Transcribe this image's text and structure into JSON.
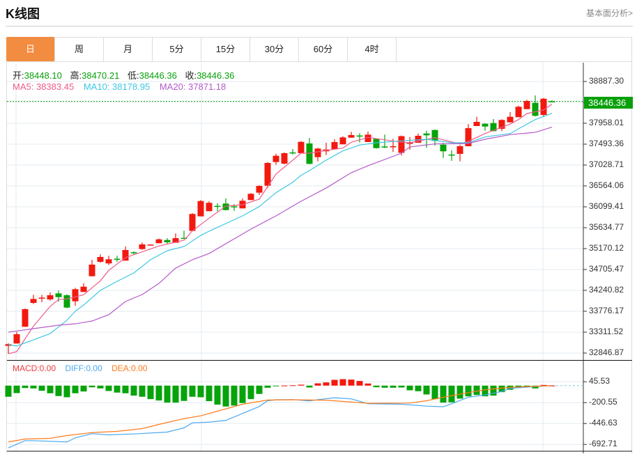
{
  "header": {
    "title": "K线图",
    "more_link": "基本面分析>"
  },
  "tabs": [
    {
      "label": "日",
      "active": true
    },
    {
      "label": "周"
    },
    {
      "label": "月"
    },
    {
      "label": "5分"
    },
    {
      "label": "15分"
    },
    {
      "label": "30分"
    },
    {
      "label": "60分"
    },
    {
      "label": "4时"
    }
  ],
  "info": {
    "open_label": "开:",
    "open": "38448.10",
    "high_label": "高:",
    "high": "38470.21",
    "low_label": "低:",
    "low": "38446.36",
    "close_label": "收:",
    "close": "38446.36"
  },
  "ma_legend": {
    "ma5": "MA5: 38383.45",
    "ma10": "MA10: 38178.95",
    "ma20": "MA20: 37871.18"
  },
  "macd_legend": {
    "macd": "MACD:0.00",
    "diff": "DIFF:0.00",
    "dea": "DEA:0.00"
  },
  "colors": {
    "up": "#f2190f",
    "down": "#06a30b",
    "ma5": "#ee5b8a",
    "ma10": "#3cc8e2",
    "ma20": "#b55ac9",
    "diff": "#4aa8f0",
    "dea": "#ff7a1a",
    "active_tab": "#f28c40"
  },
  "chart_data": [
    {
      "type": "candlestick",
      "title": "K线图",
      "ylim": [
        32692,
        39274
      ],
      "y_ticks": [
        "38887.30",
        "38422.65",
        "37958.01",
        "37493.36",
        "37028.71",
        "36564.06",
        "36099.41",
        "35634.77",
        "35170.12",
        "34705.47",
        "34240.82",
        "33776.17",
        "33311.52",
        "32846.87"
      ],
      "y_tick_values": [
        38887.3,
        38422.65,
        37958.01,
        37493.36,
        37028.71,
        36564.06,
        36099.41,
        35634.77,
        35170.12,
        34705.47,
        34240.82,
        33776.17,
        33311.52,
        32846.87
      ],
      "current_price": "38446.36",
      "ohlc_order": [
        "open",
        "high",
        "low",
        "close"
      ],
      "candles": [
        [
          33007,
          33064,
          32832,
          33044
        ],
        [
          33059,
          33316,
          33059,
          33265
        ],
        [
          33431,
          33838,
          33431,
          33823
        ],
        [
          33962,
          34143,
          33936,
          34050
        ],
        [
          34068,
          34143,
          33978,
          34080
        ],
        [
          34040,
          34194,
          34013,
          34133
        ],
        [
          34174,
          34236,
          33988,
          34091
        ],
        [
          34133,
          34153,
          33845,
          33858
        ],
        [
          33998,
          34298,
          33900,
          34267
        ],
        [
          34205,
          34400,
          34205,
          34323
        ],
        [
          34555,
          34918,
          34555,
          34814
        ],
        [
          34876,
          35042,
          34856,
          34984
        ],
        [
          34840,
          35011,
          34803,
          34933
        ],
        [
          34945,
          35011,
          34876,
          34938
        ],
        [
          34902,
          35217,
          34902,
          35139
        ],
        [
          35088,
          35108,
          35031,
          35082
        ],
        [
          35159,
          35305,
          35144,
          35263
        ],
        [
          35255,
          35265,
          35250,
          35260
        ],
        [
          35289,
          35392,
          35289,
          35376
        ],
        [
          35361,
          35402,
          35268,
          35310
        ],
        [
          35299,
          35506,
          35299,
          35402
        ],
        [
          35408,
          35568,
          35392,
          35402
        ],
        [
          35562,
          35960,
          35562,
          35940
        ],
        [
          35887,
          36250,
          35887,
          36228
        ],
        [
          36002,
          36223,
          36002,
          36188
        ],
        [
          36121,
          36181,
          36002,
          36115
        ],
        [
          36172,
          36285,
          36020,
          36027
        ],
        [
          36110,
          36157,
          36011,
          36104
        ],
        [
          36064,
          36285,
          36064,
          36234
        ],
        [
          36250,
          36405,
          36250,
          36389
        ],
        [
          36414,
          36580,
          36363,
          36564
        ],
        [
          36569,
          37095,
          36517,
          37075
        ],
        [
          37095,
          37281,
          37033,
          37235
        ],
        [
          37060,
          37310,
          37045,
          37292
        ],
        [
          37309,
          37385,
          37266,
          37303
        ],
        [
          37292,
          37560,
          37292,
          37544
        ],
        [
          37509,
          37628,
          37045,
          37055
        ],
        [
          37204,
          37410,
          37111,
          37396
        ],
        [
          37334,
          37524,
          37250,
          37374
        ],
        [
          37380,
          37602,
          37380,
          37540
        ],
        [
          37489,
          37668,
          37489,
          37643
        ],
        [
          37637,
          37767,
          37637,
          37695
        ],
        [
          37685,
          37736,
          37529,
          37679
        ],
        [
          37540,
          37772,
          37540,
          37705
        ],
        [
          37612,
          37625,
          37395,
          37405
        ],
        [
          37442,
          37705,
          37405,
          37436
        ],
        [
          37441,
          37612,
          37318,
          37447
        ],
        [
          37300,
          37685,
          37241,
          37671
        ],
        [
          37518,
          37653,
          37369,
          37524
        ],
        [
          37524,
          37730,
          37524,
          37679
        ],
        [
          37730,
          37792,
          37411,
          37690
        ],
        [
          37808,
          37820,
          37462,
          37566
        ],
        [
          37482,
          37524,
          37188,
          37334
        ],
        [
          37262,
          37358,
          37121,
          37256
        ],
        [
          37276,
          37473,
          37111,
          37447
        ],
        [
          37447,
          37938,
          37447,
          37849
        ],
        [
          37896,
          38102,
          37896,
          37989
        ],
        [
          37947,
          37960,
          37792,
          37885
        ],
        [
          37962,
          38051,
          37775,
          37783
        ],
        [
          37834,
          38045,
          37783,
          38031
        ],
        [
          37978,
          38206,
          37978,
          38102
        ],
        [
          38093,
          38350,
          38093,
          38325
        ],
        [
          38272,
          38480,
          38272,
          38453
        ],
        [
          38412,
          38577,
          38110,
          38123
        ],
        [
          38144,
          38520,
          38097,
          38504
        ],
        [
          38448.1,
          38470.21,
          38446.36,
          38446.36
        ]
      ],
      "series": [
        {
          "name": "MA5",
          "points": [
            [
              0,
              32831
            ],
            [
              1,
              32878
            ],
            [
              3,
              33446
            ],
            [
              5,
              33884
            ],
            [
              6,
              34039
            ],
            [
              7,
              34050
            ],
            [
              9,
              34143
            ],
            [
              11,
              34453
            ],
            [
              12,
              34685
            ],
            [
              14,
              34969
            ],
            [
              16,
              35097
            ],
            [
              18,
              35227
            ],
            [
              21,
              35356
            ],
            [
              22,
              35562
            ],
            [
              24,
              35847
            ],
            [
              26,
              36115
            ],
            [
              28,
              36146
            ],
            [
              30,
              36270
            ],
            [
              32,
              36827
            ],
            [
              35,
              37292
            ],
            [
              36,
              37292
            ],
            [
              38,
              37354
            ],
            [
              40,
              37405
            ],
            [
              41,
              37535
            ],
            [
              43,
              37643
            ],
            [
              47,
              37535
            ],
            [
              48,
              37524
            ],
            [
              51,
              37637
            ],
            [
              54,
              37498
            ],
            [
              55,
              37555
            ],
            [
              57,
              37730
            ],
            [
              60,
              37938
            ],
            [
              61,
              38040
            ],
            [
              62,
              38175
            ],
            [
              64,
              38252
            ],
            [
              65,
              38383.45
            ]
          ]
        },
        {
          "name": "MA10",
          "points": [
            [
              0,
              33033
            ],
            [
              1,
              33002
            ],
            [
              3,
              33141
            ],
            [
              5,
              33280
            ],
            [
              7,
              33575
            ],
            [
              8,
              33776
            ],
            [
              9,
              33915
            ],
            [
              11,
              34241
            ],
            [
              13,
              34442
            ],
            [
              15,
              34628
            ],
            [
              17,
              34922
            ],
            [
              19,
              35124
            ],
            [
              21,
              35217
            ],
            [
              23,
              35464
            ],
            [
              24,
              35557
            ],
            [
              28,
              35898
            ],
            [
              30,
              36104
            ],
            [
              32,
              36414
            ],
            [
              34,
              36646
            ],
            [
              35,
              36801
            ],
            [
              36,
              36905
            ],
            [
              38,
              37137
            ],
            [
              40,
              37343
            ],
            [
              42,
              37473
            ],
            [
              44,
              37524
            ],
            [
              47,
              37566
            ],
            [
              50,
              37602
            ],
            [
              53,
              37524
            ],
            [
              55,
              37524
            ],
            [
              57,
              37653
            ],
            [
              60,
              37730
            ],
            [
              61,
              37834
            ],
            [
              63,
              38040
            ],
            [
              65,
              38178.95
            ]
          ]
        },
        {
          "name": "MA20",
          "points": [
            [
              0,
              33311
            ],
            [
              3,
              33389
            ],
            [
              6,
              33466
            ],
            [
              8,
              33497
            ],
            [
              10,
              33559
            ],
            [
              12,
              33699
            ],
            [
              14,
              33993
            ],
            [
              16,
              34148
            ],
            [
              18,
              34395
            ],
            [
              20,
              34736
            ],
            [
              22,
              34922
            ],
            [
              24,
              35061
            ],
            [
              29,
              35604
            ],
            [
              32,
              35898
            ],
            [
              35,
              36223
            ],
            [
              38,
              36517
            ],
            [
              41,
              36858
            ],
            [
              43,
              37013
            ],
            [
              47,
              37292
            ],
            [
              48,
              37431
            ],
            [
              51,
              37498
            ],
            [
              55,
              37509
            ],
            [
              57,
              37602
            ],
            [
              60,
              37705
            ],
            [
              63,
              37756
            ],
            [
              65,
              37871.18
            ]
          ]
        }
      ]
    },
    {
      "type": "bar+line",
      "title": "MACD",
      "ylim": [
        -775,
        277
      ],
      "y_ticks": [
        "45.53",
        "-200.55",
        "-446.63",
        "-692.71"
      ],
      "y_tick_values": [
        45.53,
        -200.55,
        -446.63,
        -692.71
      ],
      "macd": [
        -131,
        -88,
        -28,
        -33,
        -61,
        -90,
        -123,
        -137,
        -90,
        -69,
        -20,
        -33,
        -63,
        -82,
        -90,
        -118,
        -131,
        -159,
        -175,
        -200,
        -200,
        -180,
        -131,
        -137,
        -183,
        -224,
        -246,
        -235,
        -205,
        -159,
        -98,
        -25,
        -3,
        1,
        4,
        11,
        -22,
        27,
        38,
        68,
        76,
        71,
        55,
        25,
        -19,
        -25,
        -25,
        -22,
        -55,
        -66,
        -104,
        -159,
        -200,
        -197,
        -153,
        -126,
        -110,
        -126,
        -118,
        -77,
        -49,
        -22,
        -11,
        -33,
        8,
        0
      ],
      "series": [
        {
          "name": "DIFF",
          "points": [
            [
              0,
              -733
            ],
            [
              2,
              -648
            ],
            [
              3,
              -648
            ],
            [
              7,
              -664
            ],
            [
              8,
              -615
            ],
            [
              10,
              -566
            ],
            [
              12,
              -580
            ],
            [
              15,
              -569
            ],
            [
              19,
              -547
            ],
            [
              21,
              -498
            ],
            [
              22,
              -438
            ],
            [
              24,
              -430
            ],
            [
              26,
              -410
            ],
            [
              28,
              -328
            ],
            [
              30,
              -246
            ],
            [
              31,
              -178
            ],
            [
              32,
              -167
            ],
            [
              34,
              -164
            ],
            [
              36,
              -180
            ],
            [
              37,
              -165
            ],
            [
              39,
              -143
            ],
            [
              41,
              -156
            ],
            [
              43,
              -213
            ],
            [
              47,
              -219
            ],
            [
              50,
              -241
            ],
            [
              52,
              -249
            ],
            [
              53,
              -213
            ],
            [
              55,
              -137
            ],
            [
              57,
              -110
            ],
            [
              59,
              -69
            ],
            [
              60,
              -33
            ],
            [
              63,
              -11
            ],
            [
              65,
              0
            ]
          ]
        },
        {
          "name": "DEA",
          "points": [
            [
              0,
              -664
            ],
            [
              2,
              -629
            ],
            [
              5,
              -621
            ],
            [
              7,
              -588
            ],
            [
              10,
              -553
            ],
            [
              13,
              -539
            ],
            [
              16,
              -506
            ],
            [
              18,
              -457
            ],
            [
              21,
              -389
            ],
            [
              23,
              -356
            ],
            [
              25,
              -301
            ],
            [
              28,
              -219
            ],
            [
              31,
              -170
            ],
            [
              34,
              -167
            ],
            [
              38,
              -172
            ],
            [
              43,
              -208
            ],
            [
              48,
              -205
            ],
            [
              50,
              -178
            ],
            [
              52,
              -137
            ],
            [
              55,
              -82
            ],
            [
              57,
              -49
            ],
            [
              60,
              -20
            ],
            [
              63,
              -8
            ],
            [
              65,
              0
            ]
          ]
        }
      ]
    }
  ]
}
